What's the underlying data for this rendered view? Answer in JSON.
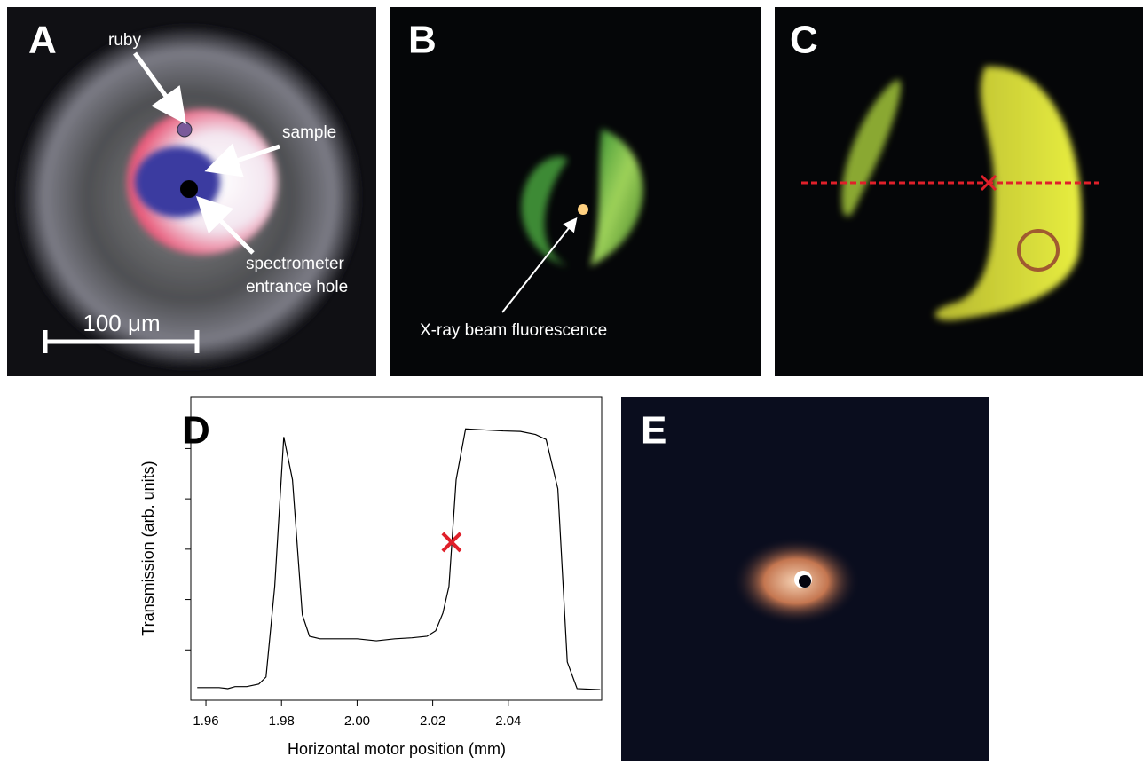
{
  "panels": {
    "a": {
      "label": "A",
      "ruby": "ruby",
      "sample": "sample",
      "hole_line1": "spectrometer",
      "hole_line2": "entrance hole",
      "scale_bar": "100 μm"
    },
    "b": {
      "label": "B",
      "beam": "X-ray beam fluorescence"
    },
    "c": {
      "label": "C"
    },
    "d": {
      "label": "D"
    },
    "e": {
      "label": "E"
    }
  },
  "chart_data": {
    "type": "line",
    "xlabel": "Horizontal motor position (mm)",
    "ylabel": "Transmission (arb. units)",
    "x": [
      1.9577,
      1.9635,
      1.9658,
      1.9677,
      1.9708,
      1.974,
      1.9759,
      1.9782,
      1.9806,
      1.9829,
      1.9855,
      1.9874,
      1.9902,
      1.9953,
      2.0,
      2.0051,
      2.01,
      2.0145,
      2.0185,
      2.0208,
      2.0227,
      2.0243,
      2.0262,
      2.0287,
      2.0337,
      2.0386,
      2.0432,
      2.0472,
      2.05,
      2.0531,
      2.0556,
      2.0582,
      2.0643
    ],
    "series": [
      {
        "color": "#000000",
        "values": [
          0.25,
          0.25,
          0.23,
          0.27,
          0.27,
          0.32,
          0.46,
          2.26,
          5.23,
          4.38,
          1.7,
          1.27,
          1.22,
          1.22,
          1.22,
          1.18,
          1.22,
          1.24,
          1.27,
          1.38,
          1.73,
          2.26,
          4.38,
          5.39,
          5.37,
          5.35,
          5.34,
          5.28,
          5.18,
          4.2,
          0.76,
          0.23,
          0.21
        ]
      }
    ],
    "xlim": [
      1.956,
      2.0647
    ],
    "ylim": [
      0,
      6.03
    ],
    "xticks": [
      1.96,
      1.98,
      {
        "value": 2,
        "label": "2.00"
      },
      2.02,
      2.04
    ],
    "yticks": [
      1,
      2,
      3,
      4,
      5
    ],
    "marker": {
      "x": 2.025,
      "y": 3.14,
      "color": "#e0202a"
    }
  }
}
